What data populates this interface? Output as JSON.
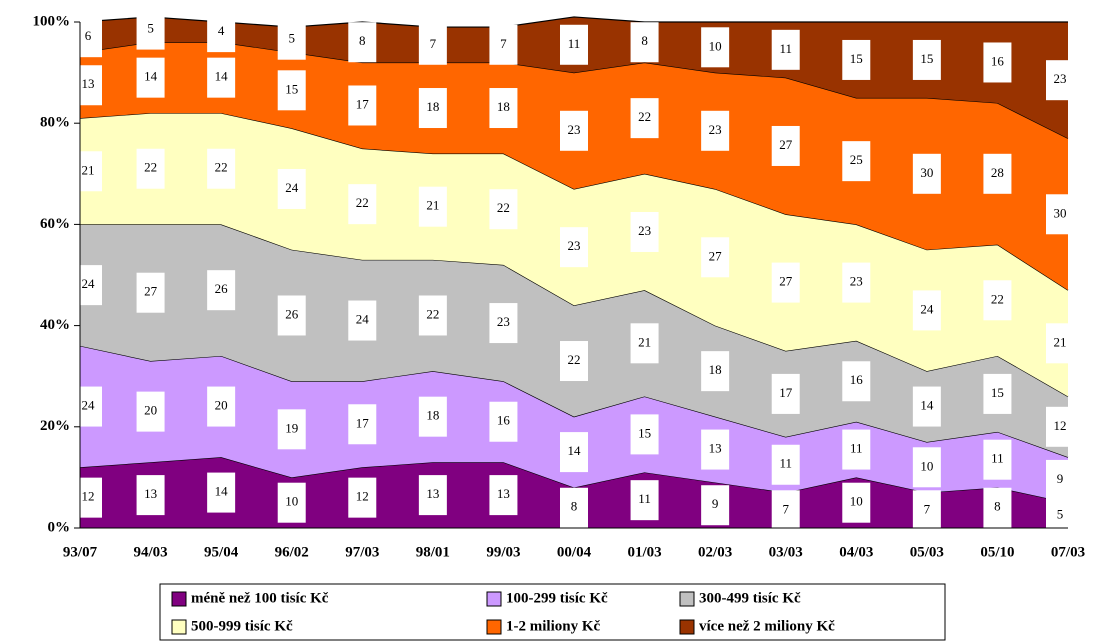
{
  "chart_data": {
    "type": "area",
    "stacked": true,
    "categories": [
      "93/07",
      "94/03",
      "95/04",
      "96/02",
      "97/03",
      "98/01",
      "99/03",
      "00/04",
      "01/03",
      "02/03",
      "03/03",
      "04/03",
      "05/03",
      "05/10",
      "07/03"
    ],
    "series": [
      {
        "name": "méně než 100 tisíc Kč",
        "color": "#800080",
        "values": [
          12,
          13,
          14,
          10,
          12,
          13,
          13,
          8,
          11,
          9,
          7,
          10,
          7,
          8,
          5
        ]
      },
      {
        "name": "100-299 tisíc Kč",
        "color": "#cc99ff",
        "values": [
          24,
          20,
          20,
          19,
          17,
          18,
          16,
          14,
          15,
          13,
          11,
          11,
          10,
          11,
          9
        ]
      },
      {
        "name": "300-499 tisíc Kč",
        "color": "#c0c0c0",
        "values": [
          24,
          27,
          26,
          26,
          24,
          22,
          23,
          22,
          21,
          18,
          17,
          16,
          14,
          15,
          12
        ]
      },
      {
        "name": "500-999 tisíc Kč",
        "color": "#ffffc0",
        "values": [
          21,
          22,
          22,
          24,
          22,
          21,
          22,
          23,
          23,
          27,
          27,
          23,
          24,
          22,
          21
        ]
      },
      {
        "name": "1-2 miliony Kč",
        "color": "#ff6600",
        "values": [
          13,
          14,
          14,
          15,
          17,
          18,
          18,
          23,
          22,
          23,
          27,
          25,
          30,
          28,
          30
        ]
      },
      {
        "name": "více než 2 miliony Kč",
        "color": "#993300",
        "values": [
          6,
          5,
          4,
          5,
          8,
          7,
          7,
          11,
          8,
          10,
          11,
          15,
          15,
          16,
          23
        ]
      }
    ],
    "ylim": [
      0,
      100
    ],
    "yticks": [
      {
        "value": 0,
        "label": "0%"
      },
      {
        "value": 20,
        "label": "20%"
      },
      {
        "value": 40,
        "label": "40%"
      },
      {
        "value": 60,
        "label": "60%"
      },
      {
        "value": 80,
        "label": "80%"
      },
      {
        "value": 100,
        "label": "100%"
      }
    ],
    "legend": "bottom"
  }
}
